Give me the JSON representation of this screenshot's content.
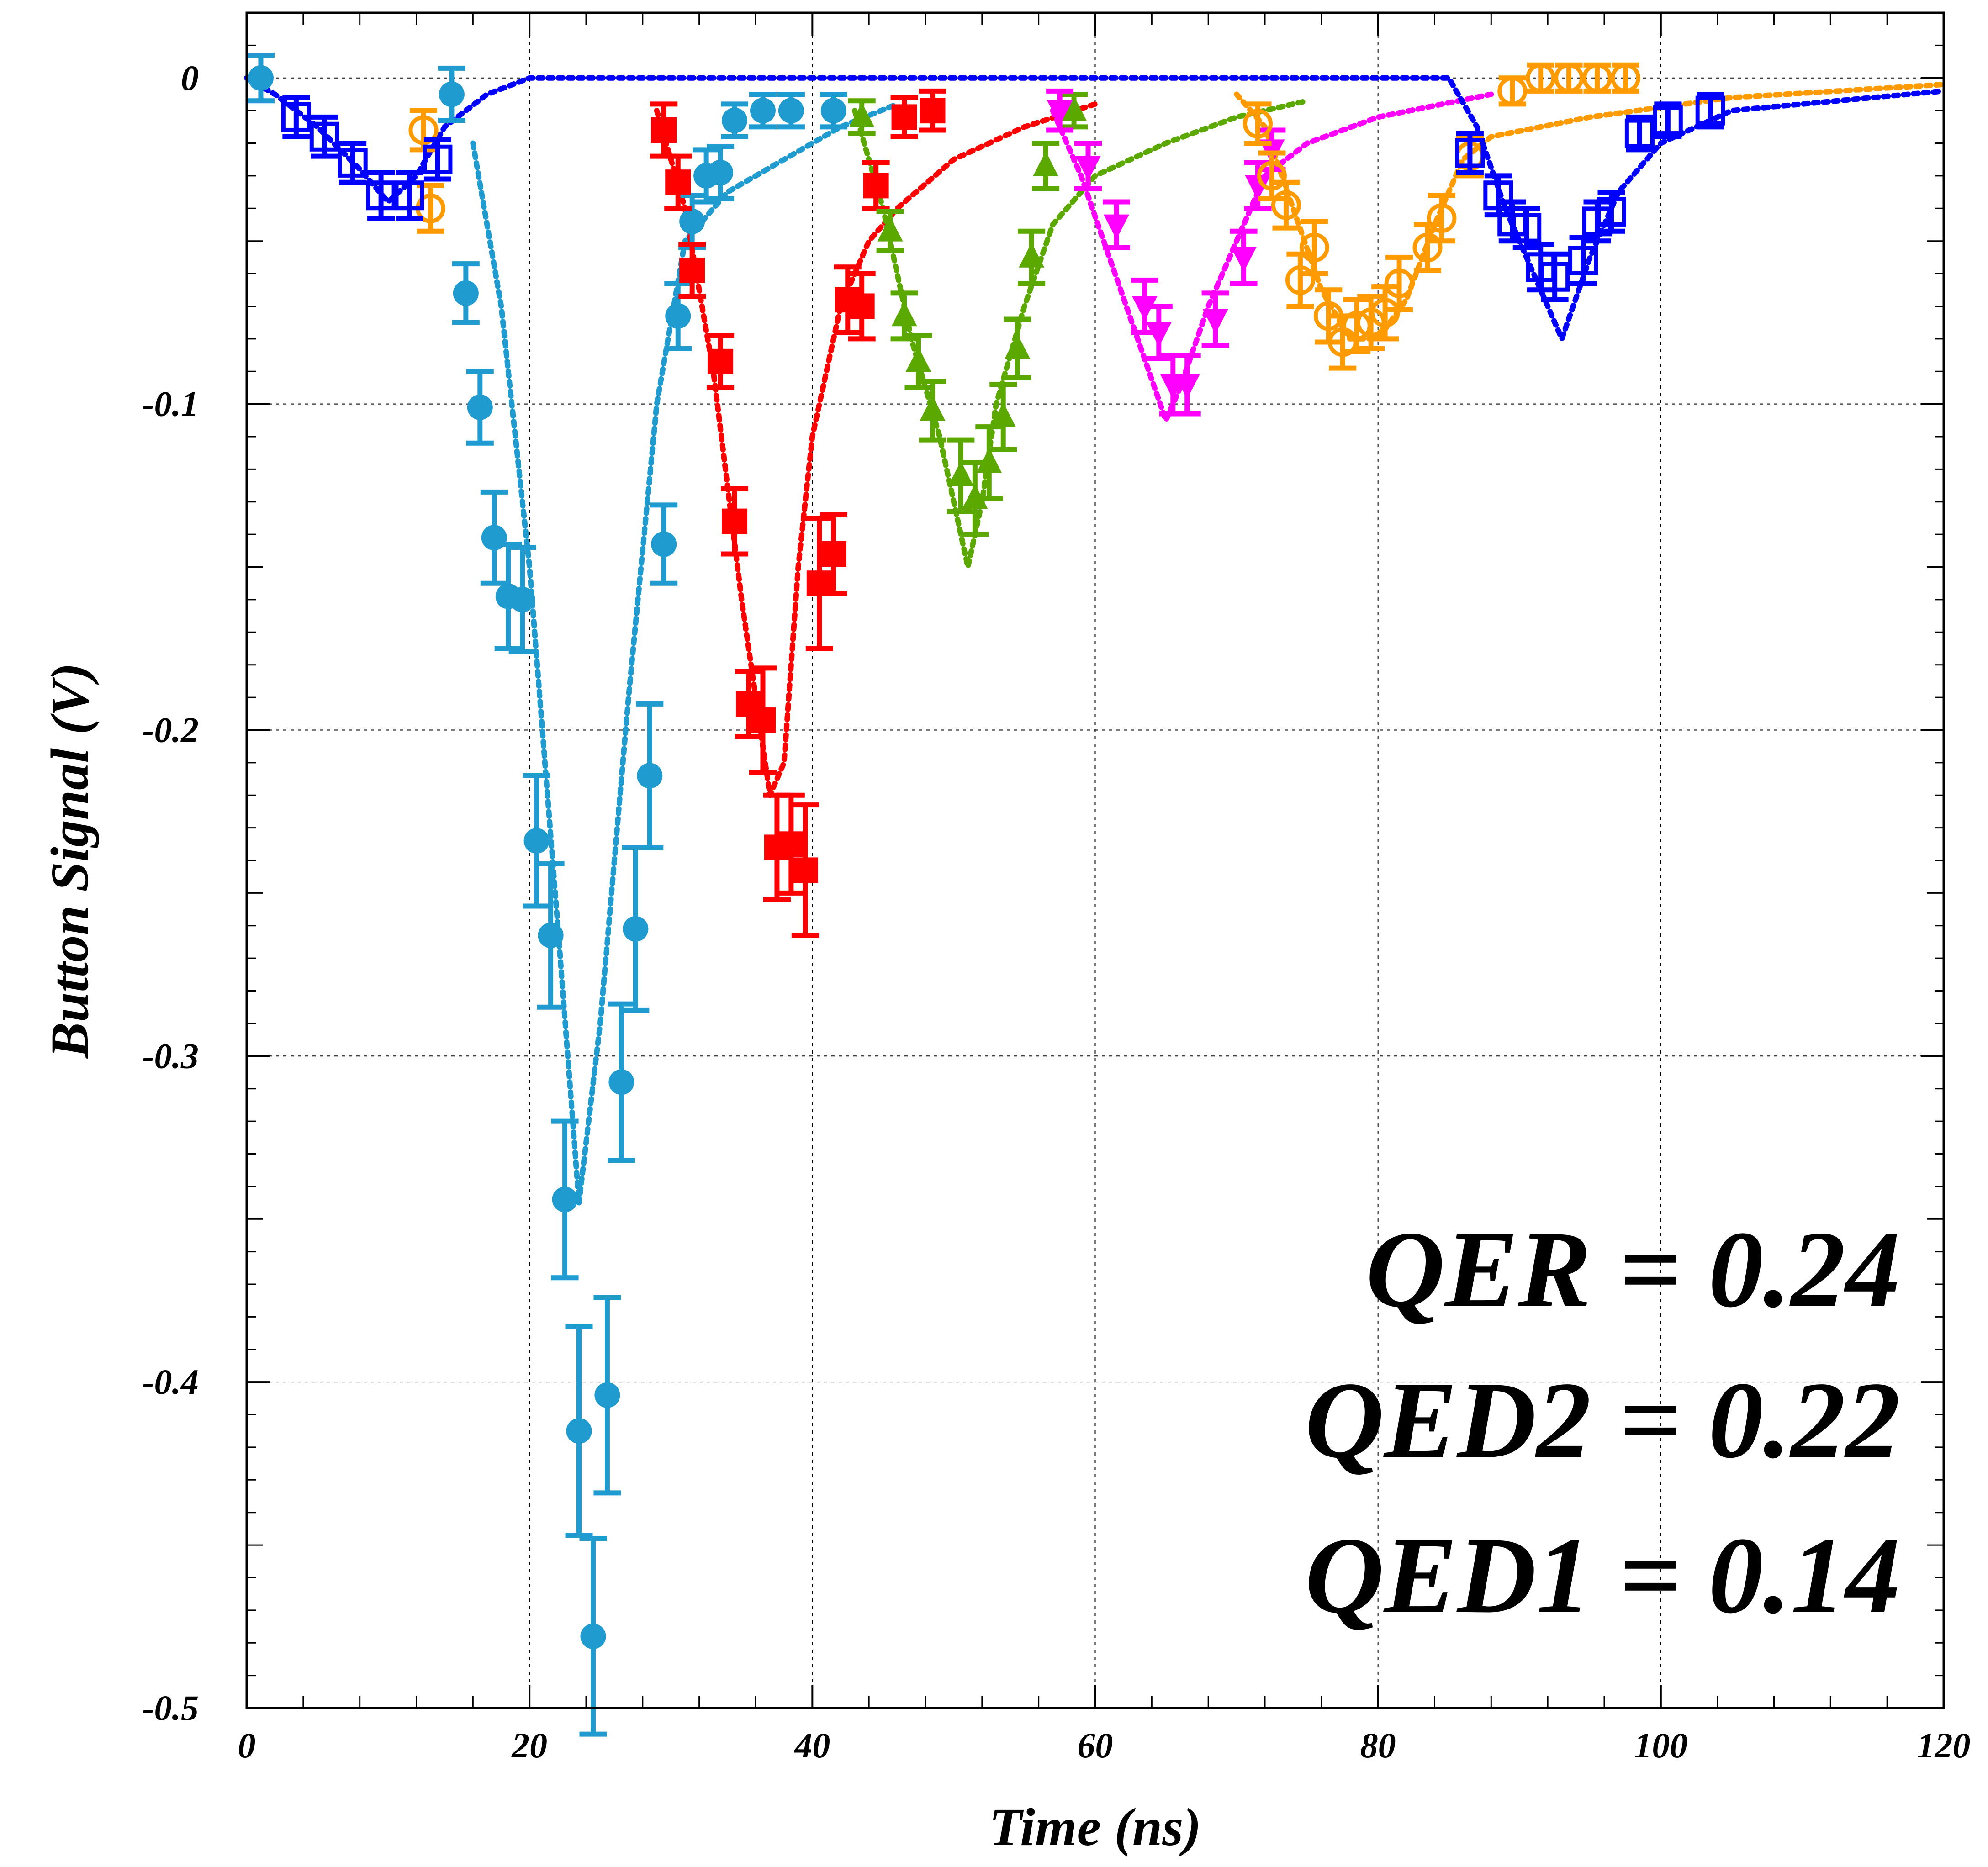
{
  "chart_data": {
    "type": "scatter",
    "title": "",
    "xlabel": "Time (ns)",
    "ylabel": "Button Signal (V)",
    "xlim": [
      0,
      120
    ],
    "ylim": [
      -0.5,
      0.02
    ],
    "xticks": [
      0,
      20,
      40,
      60,
      80,
      100,
      120
    ],
    "yticks": [
      0,
      -0.1,
      -0.2,
      -0.3,
      -0.4,
      -0.5
    ],
    "ytick_labels": [
      "0",
      "-0.1",
      "-0.2",
      "-0.3",
      "-0.4",
      "-0.5"
    ],
    "grid": true,
    "annotations": [
      "QER = 0.24",
      "QED2 = 0.22",
      "QED1 = 0.14"
    ],
    "series": [
      {
        "color": "#1f9bd0",
        "marker": "circle",
        "points": [
          [
            1,
            0
          ],
          [
            14.5,
            -0.005
          ],
          [
            15.5,
            -0.066
          ],
          [
            16.5,
            -0.101
          ],
          [
            17.5,
            -0.141
          ],
          [
            18.5,
            -0.159
          ],
          [
            19.5,
            -0.16
          ],
          [
            20.5,
            -0.234
          ],
          [
            21.5,
            -0.263
          ],
          [
            22.5,
            -0.344
          ],
          [
            23.5,
            -0.415
          ],
          [
            24.5,
            -0.478
          ],
          [
            25.5,
            -0.404
          ],
          [
            26.5,
            -0.308
          ],
          [
            27.5,
            -0.261
          ],
          [
            28.5,
            -0.214
          ],
          [
            29.5,
            -0.143
          ],
          [
            30.5,
            -0.073
          ],
          [
            31.5,
            -0.044
          ],
          [
            32.5,
            -0.03
          ],
          [
            33.5,
            -0.029
          ],
          [
            34.5,
            -0.013
          ],
          [
            36.5,
            -0.01
          ],
          [
            38.5,
            -0.01
          ],
          [
            41.5,
            -0.01
          ]
        ],
        "errors": [
          0.007,
          0.008,
          0.009,
          0.011,
          0.014,
          0.016,
          0.016,
          0.02,
          0.022,
          0.024,
          0.032,
          0.03,
          0.03,
          0.024,
          0.025,
          0.022,
          0.012,
          0.01,
          0.008,
          0.008,
          0.008,
          0.005,
          0.005,
          0.005,
          0.005
        ],
        "fit": [
          [
            16,
            -0.02
          ],
          [
            18,
            -0.07
          ],
          [
            20,
            -0.15
          ],
          [
            22,
            -0.26
          ],
          [
            23.5,
            -0.345
          ],
          [
            25,
            -0.29
          ],
          [
            27,
            -0.19
          ],
          [
            29,
            -0.1
          ],
          [
            31,
            -0.05
          ],
          [
            34,
            -0.035
          ],
          [
            38,
            -0.025
          ],
          [
            42,
            -0.015
          ],
          [
            46,
            -0.008
          ]
        ]
      },
      {
        "color": "#ff0000",
        "marker": "square",
        "points": [
          [
            29.5,
            -0.016
          ],
          [
            30.5,
            -0.032
          ],
          [
            31.5,
            -0.059
          ],
          [
            33.5,
            -0.087
          ],
          [
            34.5,
            -0.136
          ],
          [
            35.5,
            -0.192
          ],
          [
            36.5,
            -0.197
          ],
          [
            37.5,
            -0.236
          ],
          [
            38.5,
            -0.235
          ],
          [
            39.5,
            -0.243
          ],
          [
            40.5,
            -0.155
          ],
          [
            41.5,
            -0.146
          ],
          [
            42.5,
            -0.068
          ],
          [
            43.5,
            -0.07
          ],
          [
            44.5,
            -0.033
          ],
          [
            46.5,
            -0.012
          ],
          [
            48.5,
            -0.01
          ]
        ],
        "errors": [
          0.008,
          0.008,
          0.008,
          0.008,
          0.01,
          0.01,
          0.016,
          0.016,
          0.015,
          0.02,
          0.02,
          0.012,
          0.01,
          0.01,
          0.007,
          0.006,
          0.006
        ],
        "fit": [
          [
            29,
            -0.01
          ],
          [
            31,
            -0.04
          ],
          [
            33,
            -0.09
          ],
          [
            35,
            -0.16
          ],
          [
            37,
            -0.22
          ],
          [
            38,
            -0.21
          ],
          [
            39,
            -0.15
          ],
          [
            40,
            -0.11
          ],
          [
            42,
            -0.07
          ],
          [
            44,
            -0.05
          ],
          [
            46,
            -0.04
          ],
          [
            50,
            -0.025
          ],
          [
            55,
            -0.015
          ],
          [
            60,
            -0.008
          ]
        ]
      },
      {
        "color": "#5ba800",
        "marker": "triangle-up",
        "points": [
          [
            43.5,
            -0.012
          ],
          [
            45.5,
            -0.047
          ],
          [
            46.5,
            -0.073
          ],
          [
            47.5,
            -0.087
          ],
          [
            48.5,
            -0.102
          ],
          [
            50.5,
            -0.122
          ],
          [
            51.5,
            -0.129
          ],
          [
            52.5,
            -0.118
          ],
          [
            53.5,
            -0.104
          ],
          [
            54.5,
            -0.083
          ],
          [
            55.5,
            -0.055
          ],
          [
            56.5,
            -0.027
          ],
          [
            58.5,
            -0.01
          ]
        ],
        "errors": [
          0.005,
          0.006,
          0.007,
          0.008,
          0.009,
          0.011,
          0.011,
          0.011,
          0.01,
          0.009,
          0.008,
          0.007,
          0.005
        ],
        "fit": [
          [
            43,
            -0.01
          ],
          [
            45,
            -0.04
          ],
          [
            47,
            -0.08
          ],
          [
            49,
            -0.11
          ],
          [
            51,
            -0.15
          ],
          [
            52,
            -0.13
          ],
          [
            53,
            -0.1
          ],
          [
            55,
            -0.07
          ],
          [
            57,
            -0.045
          ],
          [
            60,
            -0.03
          ],
          [
            65,
            -0.02
          ],
          [
            70,
            -0.012
          ],
          [
            75,
            -0.007
          ]
        ]
      },
      {
        "color": "#ff00ff",
        "marker": "triangle-down",
        "points": [
          [
            57.5,
            -0.01
          ],
          [
            59.5,
            -0.027
          ],
          [
            61.5,
            -0.045
          ],
          [
            63.5,
            -0.07
          ],
          [
            64.5,
            -0.078
          ],
          [
            65.5,
            -0.094
          ],
          [
            66.5,
            -0.094
          ],
          [
            68.5,
            -0.074
          ],
          [
            70.5,
            -0.055
          ],
          [
            71.5,
            -0.033
          ],
          [
            72.5,
            -0.022
          ]
        ],
        "errors": [
          0.006,
          0.007,
          0.007,
          0.008,
          0.008,
          0.009,
          0.009,
          0.008,
          0.008,
          0.007,
          0.006
        ],
        "fit": [
          [
            57,
            -0.01
          ],
          [
            59,
            -0.03
          ],
          [
            61,
            -0.055
          ],
          [
            63,
            -0.08
          ],
          [
            65,
            -0.105
          ],
          [
            66,
            -0.095
          ],
          [
            68,
            -0.07
          ],
          [
            70,
            -0.05
          ],
          [
            72,
            -0.03
          ],
          [
            75,
            -0.02
          ],
          [
            80,
            -0.012
          ],
          [
            88,
            -0.005
          ]
        ]
      },
      {
        "color": "#ff9a00",
        "marker": "circle-open",
        "points": [
          [
            12.5,
            -0.016
          ],
          [
            13,
            -0.04
          ],
          [
            71.5,
            -0.014
          ],
          [
            72.5,
            -0.03
          ],
          [
            73.5,
            -0.039
          ],
          [
            74.5,
            -0.062
          ],
          [
            75.5,
            -0.052
          ],
          [
            76.5,
            -0.073
          ],
          [
            77.5,
            -0.081
          ],
          [
            78.5,
            -0.076
          ],
          [
            79.5,
            -0.075
          ],
          [
            80.5,
            -0.072
          ],
          [
            81.5,
            -0.063
          ],
          [
            83.5,
            -0.052
          ],
          [
            84.5,
            -0.043
          ],
          [
            86.5,
            -0.024
          ],
          [
            89.5,
            -0.004
          ],
          [
            91.5,
            0
          ],
          [
            93.5,
            0
          ],
          [
            95.5,
            0
          ],
          [
            97.5,
            0
          ]
        ],
        "errors": [
          0.006,
          0.007,
          0.006,
          0.007,
          0.007,
          0.008,
          0.008,
          0.008,
          0.008,
          0.008,
          0.008,
          0.008,
          0.008,
          0.007,
          0.007,
          0.006,
          0.004,
          0.004,
          0.004,
          0.004,
          0.004
        ],
        "fit": [
          [
            70,
            -0.005
          ],
          [
            72,
            -0.015
          ],
          [
            74,
            -0.04
          ],
          [
            76,
            -0.065
          ],
          [
            78,
            -0.08
          ],
          [
            80,
            -0.08
          ],
          [
            82,
            -0.068
          ],
          [
            84,
            -0.045
          ],
          [
            86,
            -0.025
          ],
          [
            88,
            -0.018
          ],
          [
            95,
            -0.012
          ],
          [
            105,
            -0.006
          ],
          [
            120,
            -0.002
          ]
        ]
      },
      {
        "color": "#0000ff",
        "marker": "square-open",
        "points": [
          [
            3.5,
            -0.012
          ],
          [
            5.5,
            -0.018
          ],
          [
            7.5,
            -0.026
          ],
          [
            9.5,
            -0.036
          ],
          [
            11.5,
            -0.036
          ],
          [
            13.5,
            -0.025
          ],
          [
            86.5,
            -0.023
          ],
          [
            88.5,
            -0.036
          ],
          [
            89.5,
            -0.044
          ],
          [
            90.5,
            -0.046
          ],
          [
            91.5,
            -0.058
          ],
          [
            92.5,
            -0.061
          ],
          [
            94.5,
            -0.056
          ],
          [
            95.5,
            -0.044
          ],
          [
            96.5,
            -0.041
          ],
          [
            98.5,
            -0.017
          ],
          [
            100.5,
            -0.013
          ],
          [
            103.5,
            -0.01
          ]
        ],
        "errors": [
          0.006,
          0.006,
          0.006,
          0.007,
          0.007,
          0.006,
          0.006,
          0.006,
          0.006,
          0.006,
          0.007,
          0.007,
          0.007,
          0.006,
          0.006,
          0.005,
          0.005,
          0.005
        ],
        "fit": [
          [
            0,
            0
          ],
          [
            2,
            -0.005
          ],
          [
            5,
            -0.015
          ],
          [
            8,
            -0.028
          ],
          [
            10,
            -0.038
          ],
          [
            12,
            -0.03
          ],
          [
            14,
            -0.015
          ],
          [
            17,
            -0.005
          ],
          [
            20,
            0
          ],
          [
            85,
            0
          ],
          [
            87,
            -0.015
          ],
          [
            89,
            -0.04
          ],
          [
            91,
            -0.06
          ],
          [
            93,
            -0.08
          ],
          [
            95,
            -0.055
          ],
          [
            97,
            -0.035
          ],
          [
            100,
            -0.02
          ],
          [
            105,
            -0.01
          ],
          [
            120,
            -0.004
          ]
        ]
      }
    ]
  }
}
